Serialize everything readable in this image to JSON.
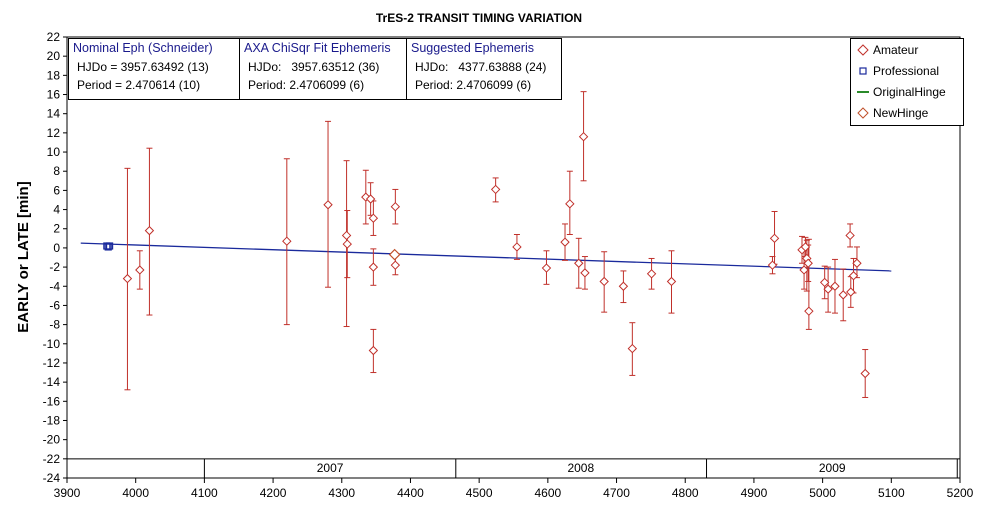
{
  "chart_data": {
    "type": "scatter",
    "title": "TrES-2 TRANSIT TIMING VARIATION",
    "ylabel": "EARLY or LATE [min]",
    "xlabel": "",
    "xlim": [
      3900,
      5200
    ],
    "ylim": [
      -24,
      22
    ],
    "x_ticks": [
      3900,
      4000,
      4100,
      4200,
      4300,
      4400,
      4500,
      4600,
      4700,
      4800,
      4900,
      5000,
      5100,
      5200
    ],
    "y_ticks": [
      22,
      20,
      18,
      16,
      14,
      12,
      10,
      8,
      6,
      4,
      2,
      0,
      -2,
      -4,
      -6,
      -8,
      -10,
      -12,
      -14,
      -16,
      -18,
      -20,
      -22,
      -24
    ],
    "year_labels": [
      "2007",
      "2008",
      "2009"
    ],
    "year_boundaries": [
      4100,
      4466,
      4831,
      5196
    ],
    "year_label_x": [
      4283,
      4648,
      5014
    ],
    "grid": false,
    "legend_position": "top-right",
    "legend": [
      {
        "name": "Amateur",
        "marker": "diamond",
        "color": "#c0302a"
      },
      {
        "name": "Professional",
        "marker": "square",
        "color": "#1a2a9c"
      },
      {
        "name": "OriginalHinge",
        "marker": "line",
        "color": "#2a8a2a"
      },
      {
        "name": "NewHinge",
        "marker": "diamond",
        "color": "#c0502a"
      }
    ],
    "series": [
      {
        "name": "Amateur",
        "color": "#c0302a",
        "points": [
          {
            "x": 3988,
            "y": -3.2,
            "lo": -14.8,
            "hi": 8.3
          },
          {
            "x": 4006,
            "y": -2.3,
            "lo": -4.3,
            "hi": -0.3
          },
          {
            "x": 4020,
            "y": 1.8,
            "lo": -7.0,
            "hi": 10.4
          },
          {
            "x": 4220,
            "y": 0.7,
            "lo": -8.0,
            "hi": 9.3
          },
          {
            "x": 4280,
            "y": 4.5,
            "lo": -4.1,
            "hi": 13.2
          },
          {
            "x": 4307,
            "y": 1.3,
            "lo": -8.2,
            "hi": 9.1
          },
          {
            "x": 4308,
            "y": 0.4,
            "lo": -3.1,
            "hi": 3.9
          },
          {
            "x": 4335,
            "y": 5.3,
            "lo": 2.5,
            "hi": 8.1
          },
          {
            "x": 4342,
            "y": 5.1,
            "lo": 3.4,
            "hi": 6.8
          },
          {
            "x": 4346,
            "y": 3.1,
            "lo": 1.3,
            "hi": 4.9
          },
          {
            "x": 4346,
            "y": -2.0,
            "lo": -3.9,
            "hi": -0.1
          },
          {
            "x": 4346,
            "y": -10.7,
            "lo": -13.0,
            "hi": -8.5
          },
          {
            "x": 4378,
            "y": 4.3,
            "lo": 2.5,
            "hi": 6.1
          },
          {
            "x": 4378,
            "y": -1.8,
            "lo": -2.8,
            "hi": -0.8
          },
          {
            "x": 4524,
            "y": 6.1,
            "lo": 4.8,
            "hi": 7.3
          },
          {
            "x": 4555,
            "y": 0.1,
            "lo": -1.2,
            "hi": 1.4
          },
          {
            "x": 4598,
            "y": -2.1,
            "lo": -3.8,
            "hi": -0.3
          },
          {
            "x": 4625,
            "y": 0.6,
            "lo": -1.3,
            "hi": 2.5
          },
          {
            "x": 4632,
            "y": 4.6,
            "lo": 1.4,
            "hi": 8.0
          },
          {
            "x": 4645,
            "y": -1.6,
            "lo": -4.2,
            "hi": 1.0
          },
          {
            "x": 4652,
            "y": 11.6,
            "lo": 7.0,
            "hi": 16.3
          },
          {
            "x": 4654,
            "y": -2.6,
            "lo": -4.3,
            "hi": -0.9
          },
          {
            "x": 4682,
            "y": -3.5,
            "lo": -6.7,
            "hi": -0.4
          },
          {
            "x": 4710,
            "y": -4.0,
            "lo": -5.7,
            "hi": -2.4
          },
          {
            "x": 4723,
            "y": -10.5,
            "lo": -13.3,
            "hi": -7.8
          },
          {
            "x": 4751,
            "y": -2.7,
            "lo": -4.3,
            "hi": -1.1
          },
          {
            "x": 4780,
            "y": -3.5,
            "lo": -6.8,
            "hi": -0.3
          },
          {
            "x": 4927,
            "y": -1.8,
            "lo": -2.7,
            "hi": -0.9
          },
          {
            "x": 4930,
            "y": 1.0,
            "lo": -1.7,
            "hi": 3.8
          },
          {
            "x": 4970,
            "y": -0.2,
            "lo": -1.6,
            "hi": 1.2
          },
          {
            "x": 4973,
            "y": -2.3,
            "lo": -4.3,
            "hi": -0.3
          },
          {
            "x": 4975,
            "y": 0.1,
            "lo": -0.9,
            "hi": 1.1
          },
          {
            "x": 4977,
            "y": -1.1,
            "lo": -4.5,
            "hi": 0.8
          },
          {
            "x": 4979,
            "y": -1.6,
            "lo": -3.5,
            "hi": 0.3
          },
          {
            "x": 4980,
            "y": -6.6,
            "lo": -8.5,
            "hi": 0.9
          },
          {
            "x": 5003,
            "y": -3.6,
            "lo": -5.3,
            "hi": -1.9
          },
          {
            "x": 5008,
            "y": -4.3,
            "lo": -6.7,
            "hi": -2.0
          },
          {
            "x": 5018,
            "y": -4.0,
            "lo": -6.8,
            "hi": -1.2
          },
          {
            "x": 5030,
            "y": -4.9,
            "lo": -7.6,
            "hi": -2.2
          },
          {
            "x": 5040,
            "y": 1.3,
            "lo": 0.1,
            "hi": 2.5
          },
          {
            "x": 5041,
            "y": -4.6,
            "lo": -6.2,
            "hi": -3.0
          },
          {
            "x": 5045,
            "y": -2.9,
            "lo": -4.7,
            "hi": -1.1
          },
          {
            "x": 5050,
            "y": -1.6,
            "lo": -3.1,
            "hi": 0.1
          },
          {
            "x": 5062,
            "y": -13.1,
            "lo": -15.6,
            "hi": -10.6
          }
        ]
      },
      {
        "name": "Professional",
        "color": "#1a2a9c",
        "points": [
          {
            "x": 3958,
            "y": 0.2
          },
          {
            "x": 3960,
            "y": 0.1
          },
          {
            "x": 3962,
            "y": 0.2
          }
        ]
      },
      {
        "name": "NewHinge",
        "color": "#c0502a",
        "points": [
          {
            "x": 4377,
            "y": -0.7
          }
        ]
      }
    ],
    "fit_line": {
      "name": "Suggested Ephemeris",
      "color": "#1a2a9c",
      "x": [
        3920,
        5100
      ],
      "y": [
        0.5,
        -2.4
      ]
    }
  },
  "info_boxes": [
    {
      "header": "Nominal Eph (Schneider)",
      "line1": "HJDo = 3957.63492 (13)",
      "line2": "Period = 2.470614 (10)"
    },
    {
      "header": "AXA ChiSqr Fit Ephemeris",
      "line1": "HJDo:   3957.63512 (36)",
      "line2": "Period: 2.4706099 (6)"
    },
    {
      "header": "Suggested Ephemeris",
      "line1": "HJDo:   4377.63888 (24)",
      "line2": "Period: 2.4706099 (6)"
    }
  ]
}
